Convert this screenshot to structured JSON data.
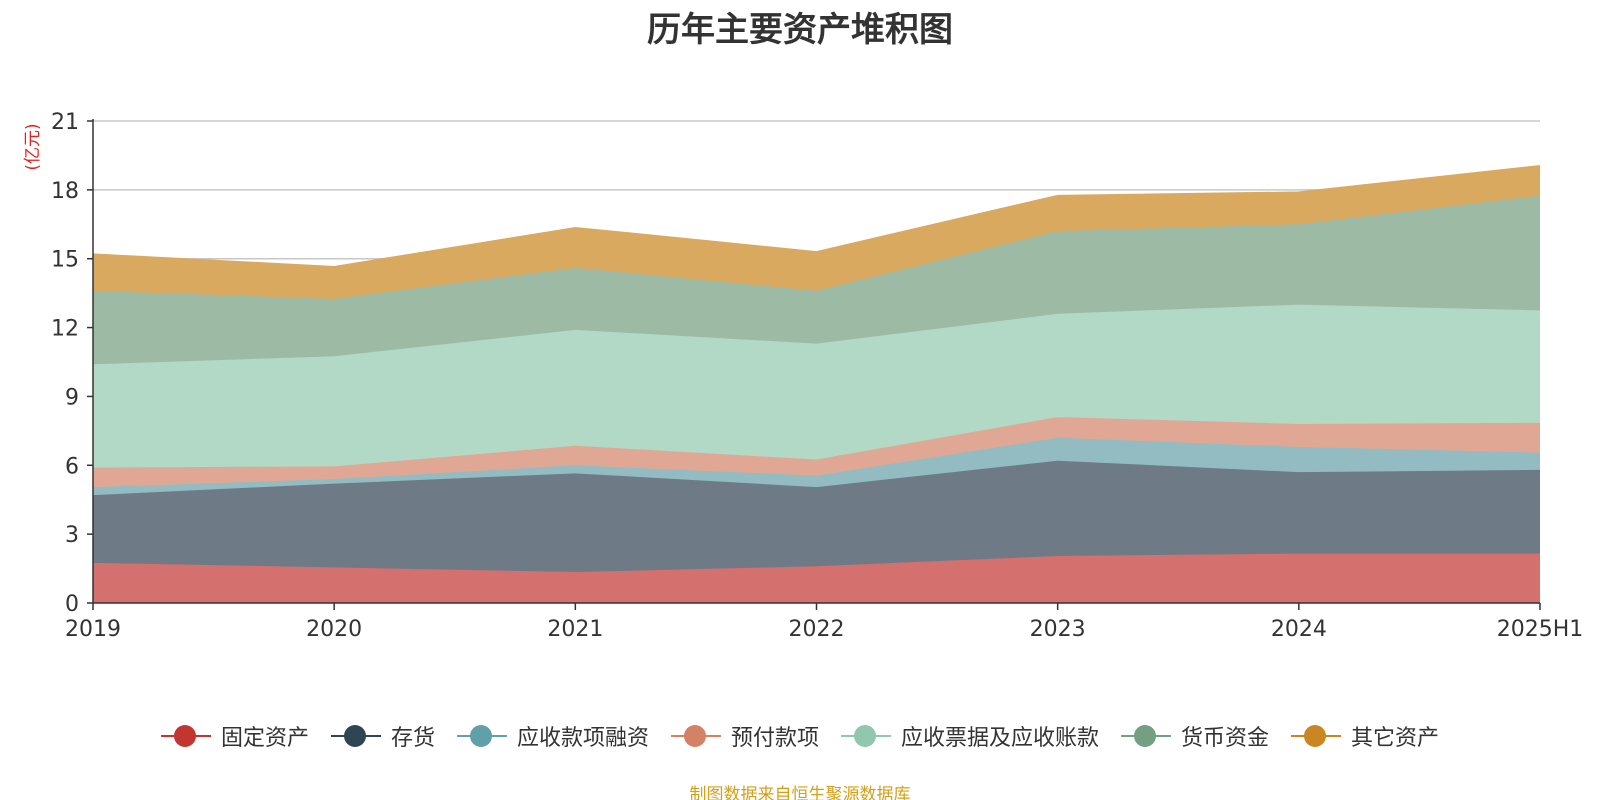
{
  "chart_data": {
    "type": "area",
    "stacked": true,
    "title": "历年主要资产堆积图",
    "unit_label": "(亿元)",
    "categories": [
      "2019",
      "2020",
      "2021",
      "2022",
      "2023",
      "2024",
      "2025H1"
    ],
    "y_ticks": [
      "0",
      "3",
      "6",
      "9",
      "12",
      "15",
      "18",
      "21"
    ],
    "ylim": [
      0,
      21
    ],
    "grid": true,
    "legend_position": "bottom",
    "series": [
      {
        "name": "固定资产",
        "color": "#c23531",
        "fill": "#d4706e",
        "values": [
          1.75,
          1.55,
          1.35,
          1.6,
          2.05,
          2.15,
          2.15
        ]
      },
      {
        "name": "存货",
        "color": "#2f4554",
        "fill": "#6e7b86",
        "values": [
          2.95,
          3.65,
          4.3,
          3.45,
          4.15,
          3.55,
          3.65
        ]
      },
      {
        "name": "应收款项融资",
        "color": "#61a0a8",
        "fill": "#92bcc2",
        "values": [
          0.35,
          0.2,
          0.35,
          0.5,
          1.0,
          1.1,
          0.75
        ]
      },
      {
        "name": "预付款项",
        "color": "#d48265",
        "fill": "#e0a894",
        "values": [
          0.85,
          0.55,
          0.85,
          0.7,
          0.9,
          1.0,
          1.3
        ]
      },
      {
        "name": "应收票据及应收账款",
        "color": "#91c7ae",
        "fill": "#b2d8c6",
        "values": [
          4.5,
          4.8,
          5.05,
          5.05,
          4.5,
          5.2,
          4.9
        ]
      },
      {
        "name": "货币资金",
        "color": "#749f83",
        "fill": "#9dbaa5",
        "values": [
          3.2,
          2.5,
          2.7,
          2.3,
          3.6,
          3.5,
          5.0
        ]
      },
      {
        "name": "其它资产",
        "color": "#ca8622",
        "fill": "#d8a95f",
        "values": [
          1.6,
          1.4,
          1.75,
          1.7,
          1.55,
          1.4,
          1.3
        ]
      }
    ]
  },
  "footer": {
    "source": "制图数据来自恒生聚源数据库"
  }
}
